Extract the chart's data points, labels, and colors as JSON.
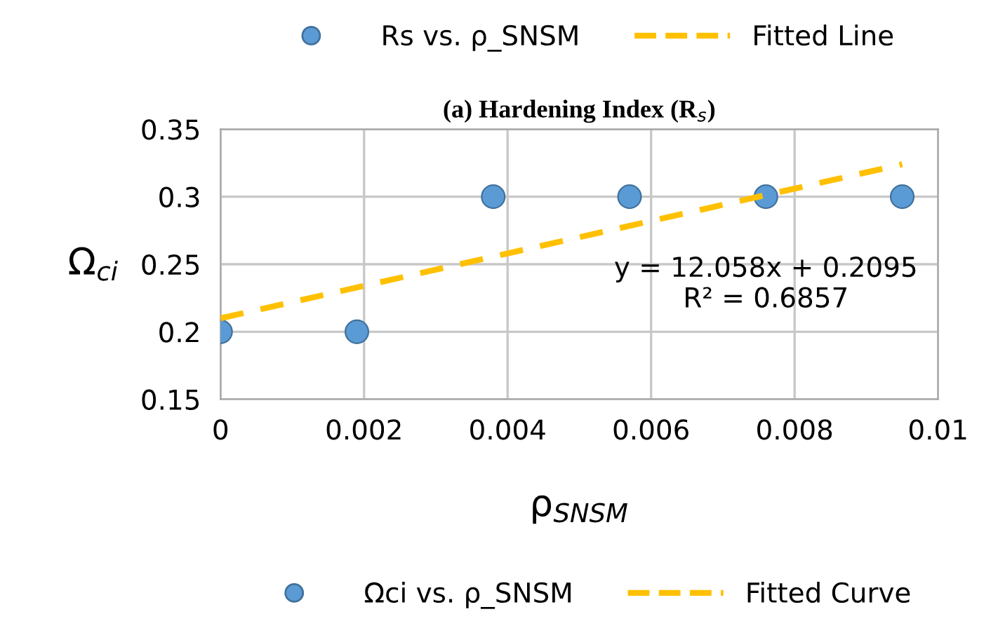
{
  "chart_data": {
    "type": "scatter",
    "title": "(a) Hardening Index (R$_{s}$)",
    "xlabel": "ρ$_{SNSM}$",
    "ylabel": "Ω$_{ci}$",
    "series": [
      {
        "name": "Rs vs. ρ_SNSM",
        "color": "#5b9bd5",
        "x": [
          0,
          0.0019,
          0.0038,
          0.0057,
          0.0076,
          0.0095
        ],
        "values": [
          0.2,
          0.2,
          0.3,
          0.3,
          0.3,
          0.3
        ]
      },
      {
        "name": "Fitted Line",
        "type": "line",
        "color": "#ffc000",
        "line_style": "dashed",
        "marker": "none",
        "x": [
          0,
          0.0095
        ],
        "values": [
          0.21,
          0.324
        ]
      }
    ],
    "annotations": [
      "y = 12.058x + 0.2095\nR² = 0.6857",
      "Ωci vs. ρ_SNSM",
      "Fitted Curve"
    ],
    "xlim": [
      0,
      0.01
    ],
    "xticks": [
      0,
      0.002,
      0.004,
      0.006,
      0.008,
      0.01
    ],
    "ylim": [
      0.15,
      0.35
    ],
    "yticks": [
      0.15,
      0.2,
      0.25,
      0.3,
      0.35
    ],
    "grid": true,
    "legend": "top",
    "marker": "circle"
  }
}
